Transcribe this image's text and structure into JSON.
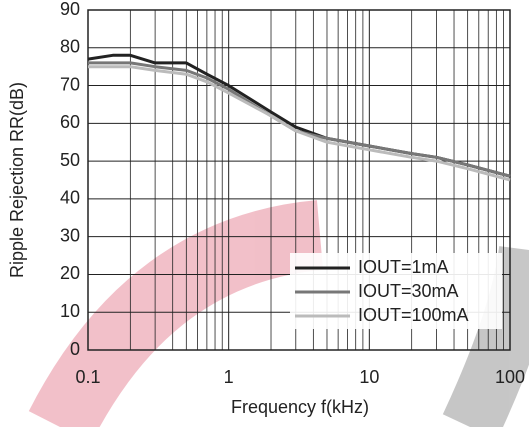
{
  "chart_data": {
    "type": "line",
    "x_label": "Frequency f(kHz)",
    "y_label": "Ripple Rejection RR(dB)",
    "x": [
      0.1,
      0.15,
      0.2,
      0.3,
      0.5,
      0.7,
      1,
      2,
      3,
      5,
      10,
      20,
      30,
      50,
      100
    ],
    "series": [
      {
        "name": "IOUT=1mA",
        "color": "#222222",
        "values": [
          77,
          78,
          78,
          76,
          76,
          73,
          70,
          63,
          59,
          56,
          54,
          52,
          51,
          49,
          46
        ]
      },
      {
        "name": "IOUT=30mA",
        "color": "#777777",
        "values": [
          76,
          76,
          76,
          75,
          74,
          72,
          69,
          62,
          58,
          56,
          54,
          52,
          51,
          49,
          46
        ]
      },
      {
        "name": "IOUT=100mA",
        "color": "#bbbbbb",
        "values": [
          75,
          75,
          75,
          74,
          73,
          71,
          68,
          62,
          58,
          55,
          53,
          51,
          50,
          48,
          45
        ]
      }
    ],
    "xlim": [
      0.1,
      100
    ],
    "xticks": [
      0.1,
      1,
      10,
      100
    ],
    "x_log": true,
    "ylim": [
      0,
      90
    ],
    "yticks": [
      0,
      10,
      20,
      30,
      40,
      50,
      60,
      70,
      80,
      90
    ],
    "grid": true
  }
}
